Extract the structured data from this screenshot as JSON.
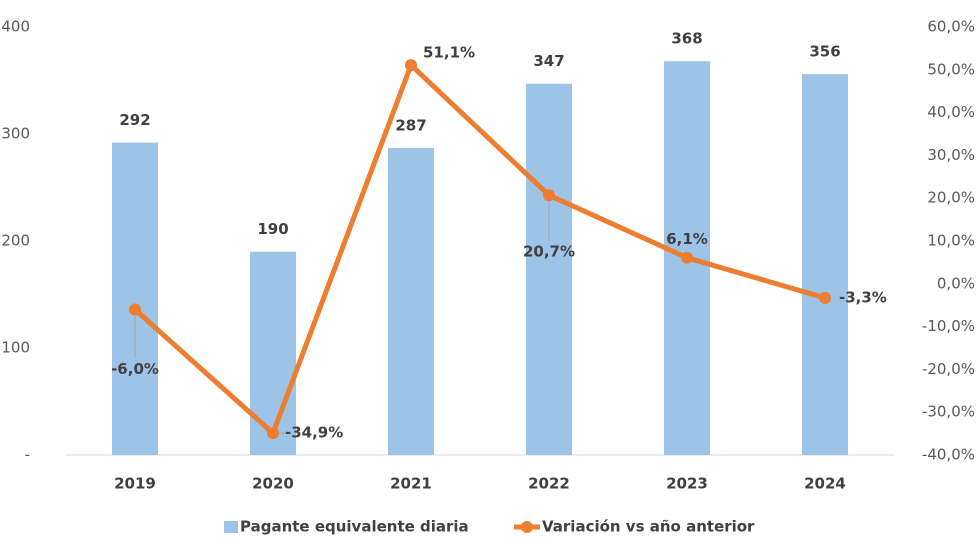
{
  "chart_data": {
    "type": "bar_line",
    "categories": [
      "2019",
      "2020",
      "2021",
      "2022",
      "2023",
      "2024"
    ],
    "series": [
      {
        "name": "Pagante equivalente diaria",
        "color": "#9dc3e6",
        "type": "bar",
        "values": [
          292,
          190,
          287,
          347,
          368,
          356
        ]
      },
      {
        "name": "Variación vs año anterior",
        "color": "#ed7d31",
        "type": "line",
        "axis": "y2",
        "values": [
          -6.0,
          -34.9,
          51.1,
          20.7,
          6.1,
          -3.3
        ],
        "value_labels": [
          "-6,0%",
          "-34,9%",
          "51,1%",
          "20,7%",
          "6,1%",
          "-3,3%"
        ]
      }
    ],
    "ylim": [
      0,
      400
    ],
    "yticks": [
      {
        "value": 0,
        "label": "-"
      },
      100,
      200,
      300,
      400
    ],
    "y2lim": [
      -40,
      60
    ],
    "y2ticks": [
      {
        "value": -40,
        "label": "-40,0%"
      },
      {
        "value": -30,
        "label": "-30,0%"
      },
      {
        "value": -20,
        "label": "-20,0%"
      },
      {
        "value": -10,
        "label": "-10,0%"
      },
      {
        "value": 0,
        "label": "0,0%"
      },
      {
        "value": 10,
        "label": "10,0%"
      },
      {
        "value": 20,
        "label": "20,0%"
      },
      {
        "value": 30,
        "label": "30,0%"
      },
      {
        "value": 40,
        "label": "40,0%"
      },
      {
        "value": 50,
        "label": "50,0%"
      },
      {
        "value": 60,
        "label": "60,0%"
      }
    ],
    "grid": false,
    "legend": "bottom"
  }
}
